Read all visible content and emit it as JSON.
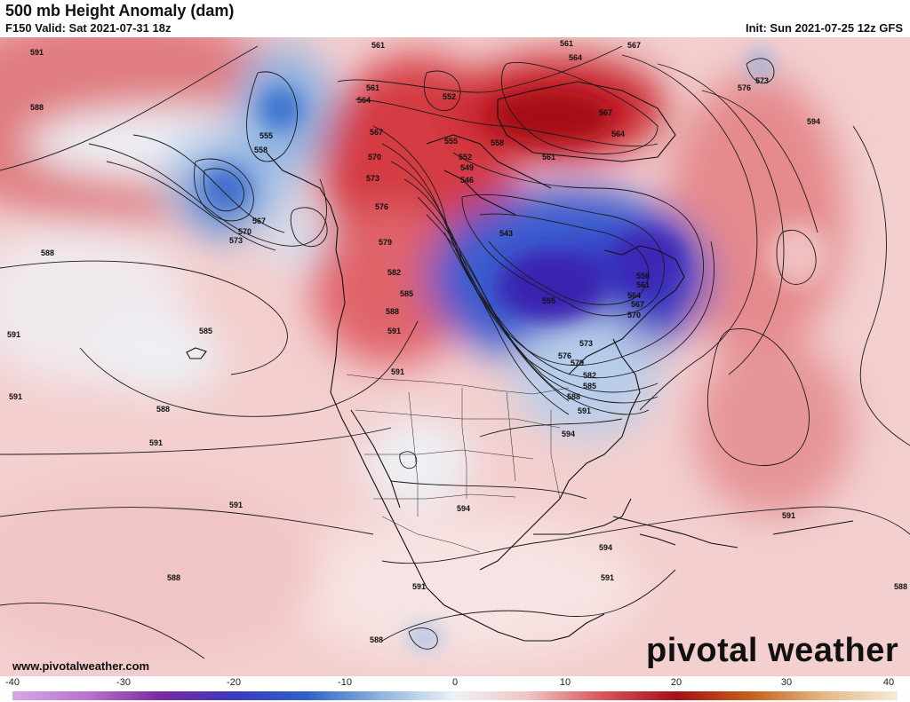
{
  "header": {
    "title": "500 mb Height Anomaly (dam)",
    "valid": "F150 Valid: Sat 2021-07-31 18z",
    "init": "Init: Sun 2021-07-25 12z GFS"
  },
  "footer": {
    "website": "www.pivotalweather.com",
    "logo": "pivotal weather"
  },
  "colorbar": {
    "ticks": [
      "-40",
      "-30",
      "-20",
      "-10",
      "0",
      "10",
      "20",
      "30",
      "40"
    ],
    "colors": [
      "#d9a6e6",
      "#b974d0",
      "#7a2aa0",
      "#3b3ac2",
      "#2f62c8",
      "#8fb5e0",
      "#eef2f7",
      "#f1c3c3",
      "#d8545a",
      "#a80f18",
      "#c4601a",
      "#e4b886",
      "#f5ecd9"
    ]
  },
  "map": {
    "contour_labels": [
      "591",
      "588",
      "588",
      "591",
      "588",
      "591",
      "591",
      "588",
      "561",
      "561",
      "567",
      "564",
      "567",
      "564",
      "561",
      "552",
      "555",
      "558",
      "561",
      "564",
      "567",
      "570",
      "573",
      "576",
      "579",
      "582",
      "585",
      "588",
      "591",
      "555",
      "558",
      "567",
      "570",
      "573",
      "585",
      "543",
      "546",
      "549",
      "552",
      "555",
      "558",
      "561",
      "564",
      "567",
      "570",
      "573",
      "576",
      "579",
      "582",
      "585",
      "588",
      "591",
      "594",
      "594",
      "591",
      "591",
      "576",
      "573",
      "594",
      "591",
      "588",
      "591",
      "594",
      "591",
      "588"
    ]
  }
}
